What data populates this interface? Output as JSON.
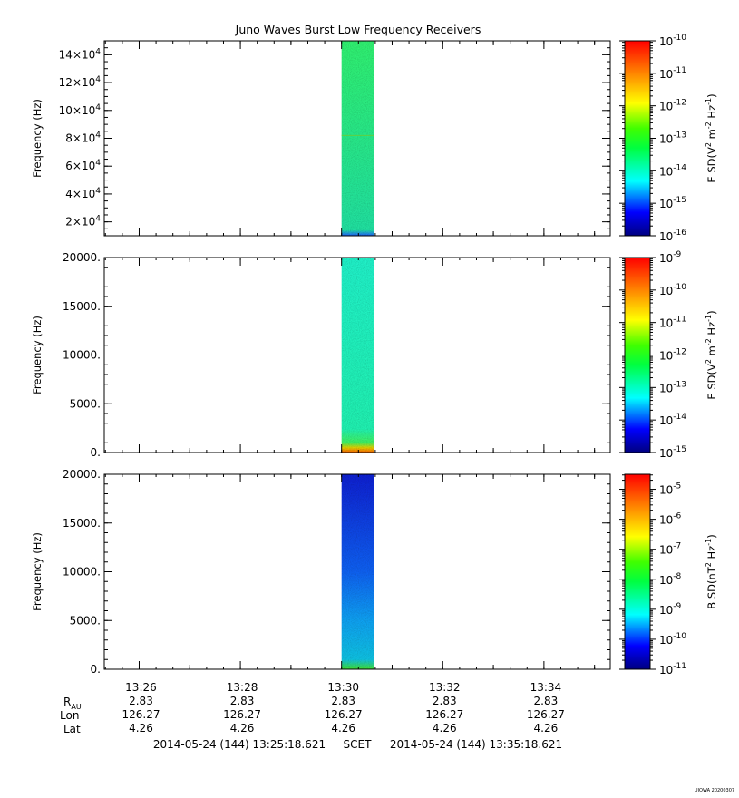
{
  "title": "Juno Waves Burst Low Frequency Receivers",
  "footer": {
    "start": "2014-05-24 (144) 13:25:18.621",
    "frame": "SCET",
    "end": "2014-05-24 (144) 13:35:18.621",
    "version": "UIOWA 20200307"
  },
  "ephemeris": {
    "labels": {
      "r_main": "R",
      "r_sub": "AU",
      "lon": "Lon",
      "lat": "Lat"
    },
    "times": [
      "13:26",
      "13:28",
      "13:30",
      "13:32",
      "13:34"
    ],
    "r": [
      "2.83",
      "2.83",
      "2.83",
      "2.83",
      "2.83"
    ],
    "lon": [
      "126.27",
      "126.27",
      "126.27",
      "126.27",
      "126.27"
    ],
    "lat": [
      "4.26",
      "4.26",
      "4.26",
      "4.26",
      "4.26"
    ]
  },
  "chart_data": [
    {
      "type": "heatmap",
      "ylabel": "Frequency (Hz)",
      "ylim": [
        10000,
        150000
      ],
      "yticks": [
        {
          "m": "2",
          "e": "4",
          "v": 20000
        },
        {
          "m": "4",
          "e": "4",
          "v": 40000
        },
        {
          "m": "6",
          "e": "4",
          "v": 60000
        },
        {
          "m": "8",
          "e": "4",
          "v": 80000
        },
        {
          "m": "10",
          "e": "4",
          "v": 100000
        },
        {
          "m": "12",
          "e": "4",
          "v": 120000
        },
        {
          "m": "14",
          "e": "4",
          "v": 140000
        }
      ],
      "xlim": [
        "13:25:18.621",
        "13:35:18.621"
      ],
      "data_span": [
        "13:30:00",
        "13:30:39"
      ],
      "dominant_level": "1e-13.5",
      "colorbar": {
        "label_main": "E SD(V",
        "label_sup1": "2",
        "label_mid": " m",
        "label_sup2": "-2",
        "label_end": " Hz",
        "label_sup3": "-1",
        "label_close": ")",
        "ticks": [
          {
            "b": "10",
            "e": "-10"
          },
          {
            "b": "10",
            "e": "-11"
          },
          {
            "b": "10",
            "e": "-12"
          },
          {
            "b": "10",
            "e": "-13"
          },
          {
            "b": "10",
            "e": "-14"
          },
          {
            "b": "10",
            "e": "-15"
          },
          {
            "b": "10",
            "e": "-16"
          }
        ],
        "range_log": [
          -16,
          -10
        ]
      }
    },
    {
      "type": "heatmap",
      "ylabel": "Frequency (Hz)",
      "ylim": [
        0,
        20000
      ],
      "yticks": [
        {
          "t": "0.",
          "v": 0
        },
        {
          "t": "5000.",
          "v": 5000
        },
        {
          "t": "10000.",
          "v": 10000
        },
        {
          "t": "15000.",
          "v": 15000
        },
        {
          "t": "20000.",
          "v": 20000
        }
      ],
      "xlim": [
        "13:25:18.621",
        "13:35:18.621"
      ],
      "data_span": [
        "13:30:00",
        "13:30:39"
      ],
      "dominant_level": "1e-13.3",
      "colorbar": {
        "label_main": "E SD(V",
        "label_sup1": "2",
        "label_mid": " m",
        "label_sup2": "-2",
        "label_end": " Hz",
        "label_sup3": "-1",
        "label_close": ")",
        "ticks": [
          {
            "b": "10",
            "e": "-9"
          },
          {
            "b": "10",
            "e": "-10"
          },
          {
            "b": "10",
            "e": "-11"
          },
          {
            "b": "10",
            "e": "-12"
          },
          {
            "b": "10",
            "e": "-13"
          },
          {
            "b": "10",
            "e": "-14"
          },
          {
            "b": "10",
            "e": "-15"
          }
        ],
        "range_log": [
          -15,
          -9
        ]
      }
    },
    {
      "type": "heatmap",
      "ylabel": "Frequency (Hz)",
      "ylim": [
        0,
        20000
      ],
      "yticks": [
        {
          "t": "0.",
          "v": 0
        },
        {
          "t": "5000.",
          "v": 5000
        },
        {
          "t": "10000.",
          "v": 10000
        },
        {
          "t": "15000.",
          "v": 15000
        },
        {
          "t": "20000.",
          "v": 20000
        }
      ],
      "xlim": [
        "13:25:18.621",
        "13:35:18.621"
      ],
      "data_span": [
        "13:30:00",
        "13:30:39"
      ],
      "dominant_level": "1e-10",
      "colorbar": {
        "label_main": "B SD(nT",
        "label_sup1": "2",
        "label_mid": "",
        "label_sup2": "",
        "label_end": " Hz",
        "label_sup3": "-1",
        "label_close": ")",
        "ticks": [
          {
            "b": "10",
            "e": "-5"
          },
          {
            "b": "10",
            "e": "-6"
          },
          {
            "b": "10",
            "e": "-7"
          },
          {
            "b": "10",
            "e": "-8"
          },
          {
            "b": "10",
            "e": "-9"
          },
          {
            "b": "10",
            "e": "-10"
          },
          {
            "b": "10",
            "e": "-11"
          }
        ],
        "range_log": [
          -11,
          -4.5
        ]
      }
    }
  ]
}
